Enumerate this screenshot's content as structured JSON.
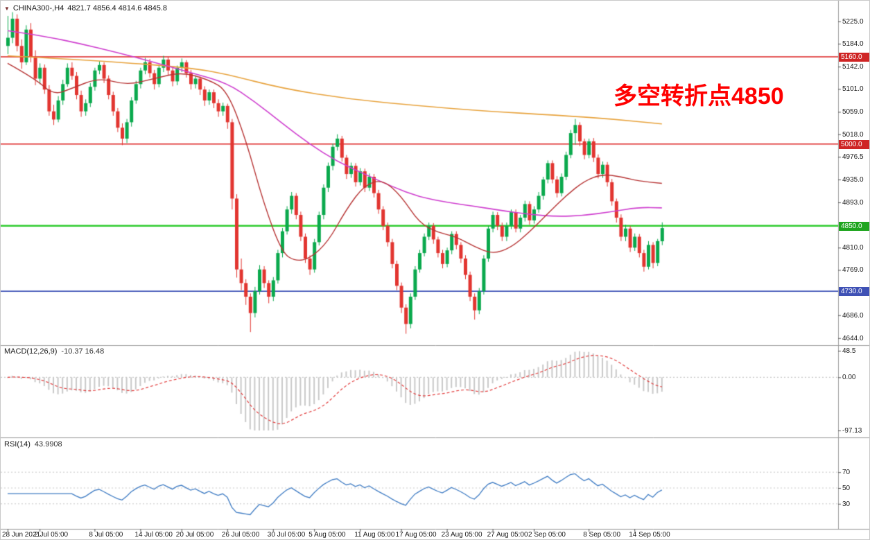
{
  "header": {
    "collapse_icon": "▼",
    "symbol": "CHINA300-",
    "timeframe": "H4",
    "symbol_period": "CHINA300-,H4",
    "ohlc_text": "4821.7 4856.4 4814.6 4845.8",
    "open": "4821.7",
    "high": "4856.4",
    "low": "4814.6",
    "close": "4845.8"
  },
  "annotation": {
    "text": "多空转折点4850",
    "color": "#ff0000"
  },
  "chart_data": {
    "type": "candlestick",
    "symbol": "CHINA300-",
    "timeframe": "H4",
    "up_color": "#0aa94d",
    "down_color": "#e23530",
    "y_axis": {
      "range": [
        4631,
        5263
      ],
      "ticks": [
        "5225.0",
        "5184.0",
        "5142.0",
        "5101.0",
        "5059.0",
        "5018.0",
        "4976.5",
        "4935.0",
        "4893.0",
        "4810.0",
        "4769.0",
        "4686.0",
        "4644.0"
      ]
    },
    "x_axis": {
      "labels": [
        {
          "text": "28 Jun 2021",
          "index": 0
        },
        {
          "text": "2 Jul 05:00",
          "index": 7
        },
        {
          "text": "8 Jul 05:00",
          "index": 19
        },
        {
          "text": "14 Jul 05:00",
          "index": 29
        },
        {
          "text": "20 Jul 05:00",
          "index": 38
        },
        {
          "text": "26 Jul 05:00",
          "index": 48
        },
        {
          "text": "30 Jul 05:00",
          "index": 58
        },
        {
          "text": "5 Aug 05:00",
          "index": 67
        },
        {
          "text": "11 Aug 05:00",
          "index": 77
        },
        {
          "text": "17 Aug 05:00",
          "index": 86
        },
        {
          "text": "23 Aug 05:00",
          "index": 96
        },
        {
          "text": "27 Aug 05:00",
          "index": 106
        },
        {
          "text": "2 Sep 05:00",
          "index": 115
        },
        {
          "text": "8 Sep 05:00",
          "index": 127
        },
        {
          "text": "14 Sep 05:00",
          "index": 137
        }
      ]
    },
    "hlines": [
      {
        "price": 5160,
        "label": "5160.0",
        "line_color": "#dd2222",
        "badge_color": "#cf2525",
        "line_width": 1.4
      },
      {
        "price": 5000,
        "label": "5000.0",
        "line_color": "#dd2222",
        "badge_color": "#cf2525",
        "line_width": 1.4
      },
      {
        "price": 4850,
        "label": "4850.0",
        "line_color": "#2ecc2e",
        "badge_color": "#1fa51f",
        "line_width": 2.6
      },
      {
        "price": 4730,
        "label": "4730.0",
        "line_color": "#4055b8",
        "badge_color": "#3f51b5",
        "line_width": 1.6
      }
    ],
    "moving_averages": [
      {
        "name": "slow-ma",
        "color": "#e8a33d",
        "width": 1.6,
        "points": [
          [
            0,
            5162
          ],
          [
            20,
            5153
          ],
          [
            40,
            5140
          ],
          [
            48,
            5128
          ],
          [
            60,
            5102
          ],
          [
            75,
            5082
          ],
          [
            90,
            5070
          ],
          [
            105,
            5060
          ],
          [
            120,
            5053
          ],
          [
            132,
            5046
          ],
          [
            143,
            5037
          ]
        ]
      },
      {
        "name": "mid-ma",
        "color": "#cf3ecf",
        "width": 1.6,
        "points": [
          [
            0,
            5208
          ],
          [
            8,
            5198
          ],
          [
            16,
            5184
          ],
          [
            24,
            5168
          ],
          [
            32,
            5150
          ],
          [
            40,
            5131
          ],
          [
            48,
            5112
          ],
          [
            54,
            5078
          ],
          [
            60,
            5038
          ],
          [
            66,
            5000
          ],
          [
            72,
            4968
          ],
          [
            78,
            4945
          ],
          [
            84,
            4922
          ],
          [
            90,
            4903
          ],
          [
            96,
            4893
          ],
          [
            102,
            4886
          ],
          [
            108,
            4878
          ],
          [
            114,
            4871
          ],
          [
            120,
            4867
          ],
          [
            126,
            4869
          ],
          [
            132,
            4876
          ],
          [
            138,
            4884
          ],
          [
            143,
            4883
          ]
        ]
      },
      {
        "name": "fast-ma",
        "color": "#b73333",
        "width": 1.4,
        "points": [
          [
            0,
            5148
          ],
          [
            6,
            5120
          ],
          [
            10,
            5090
          ],
          [
            14,
            5102
          ],
          [
            20,
            5122
          ],
          [
            26,
            5108
          ],
          [
            32,
            5120
          ],
          [
            38,
            5132
          ],
          [
            44,
            5118
          ],
          [
            48,
            5098
          ],
          [
            52,
            5010
          ],
          [
            56,
            4890
          ],
          [
            60,
            4800
          ],
          [
            63,
            4785
          ],
          [
            66,
            4790
          ],
          [
            70,
            4820
          ],
          [
            74,
            4880
          ],
          [
            78,
            4925
          ],
          [
            82,
            4935
          ],
          [
            86,
            4905
          ],
          [
            90,
            4855
          ],
          [
            94,
            4838
          ],
          [
            98,
            4830
          ],
          [
            102,
            4812
          ],
          [
            106,
            4798
          ],
          [
            110,
            4810
          ],
          [
            114,
            4838
          ],
          [
            118,
            4872
          ],
          [
            122,
            4905
          ],
          [
            126,
            4932
          ],
          [
            130,
            4945
          ],
          [
            134,
            4940
          ],
          [
            138,
            4932
          ],
          [
            143,
            4928
          ]
        ]
      }
    ],
    "indicators": {
      "macd": {
        "label": "MACD(12,26,9)",
        "values_text": "-10.37 16.48",
        "params": [
          12,
          26,
          9
        ],
        "range": [
          48.5,
          -97.13
        ],
        "axis_labels": [
          "48.5",
          "0.00",
          "-97.13"
        ],
        "histogram_color": "#c9c9c9",
        "signal_color": "#e23b3b",
        "signal_style": "dashed"
      },
      "rsi": {
        "label": "RSI(14)",
        "value_text": "43.9908",
        "period": 14,
        "range": [
          0,
          100
        ],
        "levels": [
          70,
          50,
          30
        ],
        "line_color": "#3f7cc4"
      }
    },
    "candles": [
      [
        5180,
        5235,
        5165,
        5195
      ],
      [
        5195,
        5242,
        5185,
        5230
      ],
      [
        5230,
        5238,
        5170,
        5180
      ],
      [
        5180,
        5192,
        5138,
        5150
      ],
      [
        5150,
        5218,
        5145,
        5210
      ],
      [
        5210,
        5222,
        5150,
        5160
      ],
      [
        5160,
        5172,
        5108,
        5120
      ],
      [
        5120,
        5148,
        5110,
        5140
      ],
      [
        5140,
        5146,
        5092,
        5100
      ],
      [
        5100,
        5108,
        5052,
        5060
      ],
      [
        5060,
        5072,
        5035,
        5045
      ],
      [
        5045,
        5088,
        5040,
        5080
      ],
      [
        5080,
        5118,
        5072,
        5110
      ],
      [
        5110,
        5148,
        5105,
        5140
      ],
      [
        5140,
        5150,
        5118,
        5125
      ],
      [
        5125,
        5132,
        5082,
        5090
      ],
      [
        5090,
        5098,
        5050,
        5060
      ],
      [
        5060,
        5082,
        5052,
        5075
      ],
      [
        5075,
        5112,
        5068,
        5105
      ],
      [
        5105,
        5140,
        5098,
        5135
      ],
      [
        5135,
        5152,
        5128,
        5145
      ],
      [
        5145,
        5150,
        5112,
        5120
      ],
      [
        5120,
        5126,
        5082,
        5090
      ],
      [
        5090,
        5096,
        5052,
        5060
      ],
      [
        5060,
        5066,
        5022,
        5030
      ],
      [
        5030,
        5038,
        4998,
        5010
      ],
      [
        5010,
        5046,
        5002,
        5040
      ],
      [
        5040,
        5086,
        5032,
        5080
      ],
      [
        5080,
        5116,
        5074,
        5110
      ],
      [
        5110,
        5140,
        5102,
        5135
      ],
      [
        5135,
        5158,
        5128,
        5150
      ],
      [
        5150,
        5156,
        5122,
        5130
      ],
      [
        5130,
        5136,
        5100,
        5110
      ],
      [
        5110,
        5145,
        5104,
        5140
      ],
      [
        5140,
        5162,
        5132,
        5155
      ],
      [
        5155,
        5160,
        5126,
        5135
      ],
      [
        5135,
        5140,
        5106,
        5115
      ],
      [
        5115,
        5144,
        5108,
        5140
      ],
      [
        5140,
        5157,
        5132,
        5150
      ],
      [
        5150,
        5154,
        5122,
        5130
      ],
      [
        5130,
        5136,
        5100,
        5110
      ],
      [
        5110,
        5126,
        5102,
        5120
      ],
      [
        5120,
        5124,
        5090,
        5100
      ],
      [
        5100,
        5106,
        5070,
        5080
      ],
      [
        5080,
        5100,
        5072,
        5095
      ],
      [
        5095,
        5100,
        5066,
        5075
      ],
      [
        5075,
        5082,
        5050,
        5060
      ],
      [
        5060,
        5076,
        5052,
        5070
      ],
      [
        5070,
        5074,
        5028,
        5040
      ],
      [
        5040,
        5046,
        4880,
        4900
      ],
      [
        4900,
        4908,
        4755,
        4770
      ],
      [
        4770,
        4790,
        4732,
        4745
      ],
      [
        4745,
        4752,
        4705,
        4720
      ],
      [
        4720,
        4726,
        4655,
        4690
      ],
      [
        4690,
        4738,
        4682,
        4730
      ],
      [
        4730,
        4778,
        4724,
        4770
      ],
      [
        4770,
        4776,
        4736,
        4745
      ],
      [
        4745,
        4750,
        4708,
        4720
      ],
      [
        4720,
        4756,
        4712,
        4750
      ],
      [
        4750,
        4806,
        4744,
        4800
      ],
      [
        4800,
        4846,
        4792,
        4840
      ],
      [
        4840,
        4886,
        4834,
        4880
      ],
      [
        4880,
        4912,
        4872,
        4905
      ],
      [
        4905,
        4910,
        4862,
        4870
      ],
      [
        4870,
        4876,
        4822,
        4830
      ],
      [
        4830,
        4836,
        4782,
        4790
      ],
      [
        4790,
        4796,
        4760,
        4770
      ],
      [
        4770,
        4826,
        4764,
        4820
      ],
      [
        4820,
        4876,
        4814,
        4870
      ],
      [
        4870,
        4926,
        4862,
        4920
      ],
      [
        4920,
        4966,
        4912,
        4960
      ],
      [
        4960,
        5001,
        4952,
        4995
      ],
      [
        4995,
        5018,
        4988,
        5010
      ],
      [
        5010,
        5015,
        4968,
        4975
      ],
      [
        4975,
        4980,
        4936,
        4945
      ],
      [
        4945,
        4966,
        4938,
        4960
      ],
      [
        4960,
        4965,
        4922,
        4930
      ],
      [
        4930,
        4956,
        4924,
        4950
      ],
      [
        4950,
        4955,
        4912,
        4920
      ],
      [
        4920,
        4946,
        4914,
        4940
      ],
      [
        4940,
        4945,
        4902,
        4910
      ],
      [
        4910,
        4916,
        4872,
        4880
      ],
      [
        4880,
        4886,
        4842,
        4850
      ],
      [
        4850,
        4856,
        4812,
        4820
      ],
      [
        4820,
        4826,
        4772,
        4780
      ],
      [
        4780,
        4786,
        4732,
        4740
      ],
      [
        4740,
        4746,
        4690,
        4700
      ],
      [
        4700,
        4706,
        4652,
        4670
      ],
      [
        4670,
        4726,
        4662,
        4720
      ],
      [
        4720,
        4776,
        4714,
        4770
      ],
      [
        4770,
        4806,
        4764,
        4800
      ],
      [
        4800,
        4836,
        4794,
        4830
      ],
      [
        4830,
        4856,
        4824,
        4850
      ],
      [
        4850,
        4855,
        4817,
        4825
      ],
      [
        4825,
        4830,
        4792,
        4800
      ],
      [
        4800,
        4806,
        4772,
        4780
      ],
      [
        4780,
        4810,
        4774,
        4805
      ],
      [
        4805,
        4840,
        4798,
        4835
      ],
      [
        4835,
        4840,
        4807,
        4815
      ],
      [
        4815,
        4820,
        4782,
        4790
      ],
      [
        4790,
        4796,
        4752,
        4760
      ],
      [
        4760,
        4766,
        4712,
        4720
      ],
      [
        4720,
        4726,
        4678,
        4695
      ],
      [
        4695,
        4736,
        4688,
        4730
      ],
      [
        4730,
        4796,
        4724,
        4790
      ],
      [
        4790,
        4850,
        4784,
        4845
      ],
      [
        4845,
        4876,
        4838,
        4870
      ],
      [
        4870,
        4875,
        4842,
        4850
      ],
      [
        4850,
        4856,
        4822,
        4830
      ],
      [
        4830,
        4856,
        4822,
        4850
      ],
      [
        4850,
        4880,
        4844,
        4875
      ],
      [
        4875,
        4880,
        4838,
        4845
      ],
      [
        4845,
        4870,
        4838,
        4865
      ],
      [
        4865,
        4896,
        4858,
        4890
      ],
      [
        4890,
        4895,
        4852,
        4860
      ],
      [
        4860,
        4886,
        4854,
        4880
      ],
      [
        4880,
        4912,
        4874,
        4905
      ],
      [
        4905,
        4940,
        4898,
        4935
      ],
      [
        4935,
        4970,
        4928,
        4965
      ],
      [
        4965,
        4970,
        4928,
        4935
      ],
      [
        4935,
        4941,
        4902,
        4910
      ],
      [
        4910,
        4946,
        4904,
        4940
      ],
      [
        4940,
        4986,
        4934,
        4980
      ],
      [
        4980,
        5026,
        4974,
        5020
      ],
      [
        5020,
        5046,
        4999,
        5035
      ],
      [
        5035,
        5040,
        4996,
        5005
      ],
      [
        5005,
        5010,
        4972,
        4980
      ],
      [
        4980,
        5010,
        4974,
        5005
      ],
      [
        5005,
        5011,
        4967,
        4975
      ],
      [
        4975,
        4981,
        4937,
        4945
      ],
      [
        4945,
        4968,
        4938,
        4962
      ],
      [
        4962,
        4967,
        4922,
        4930
      ],
      [
        4930,
        4936,
        4887,
        4895
      ],
      [
        4895,
        4900,
        4856,
        4865
      ],
      [
        4865,
        4871,
        4822,
        4830
      ],
      [
        4830,
        4852,
        4822,
        4845
      ],
      [
        4845,
        4850,
        4802,
        4810
      ],
      [
        4810,
        4836,
        4804,
        4830
      ],
      [
        4830,
        4835,
        4792,
        4800
      ],
      [
        4800,
        4806,
        4766,
        4775
      ],
      [
        4775,
        4822,
        4770,
        4815
      ],
      [
        4815,
        4820,
        4772,
        4782
      ],
      [
        4782,
        4826,
        4776,
        4822
      ],
      [
        4821.7,
        4856.4,
        4814.6,
        4845.8
      ]
    ]
  }
}
